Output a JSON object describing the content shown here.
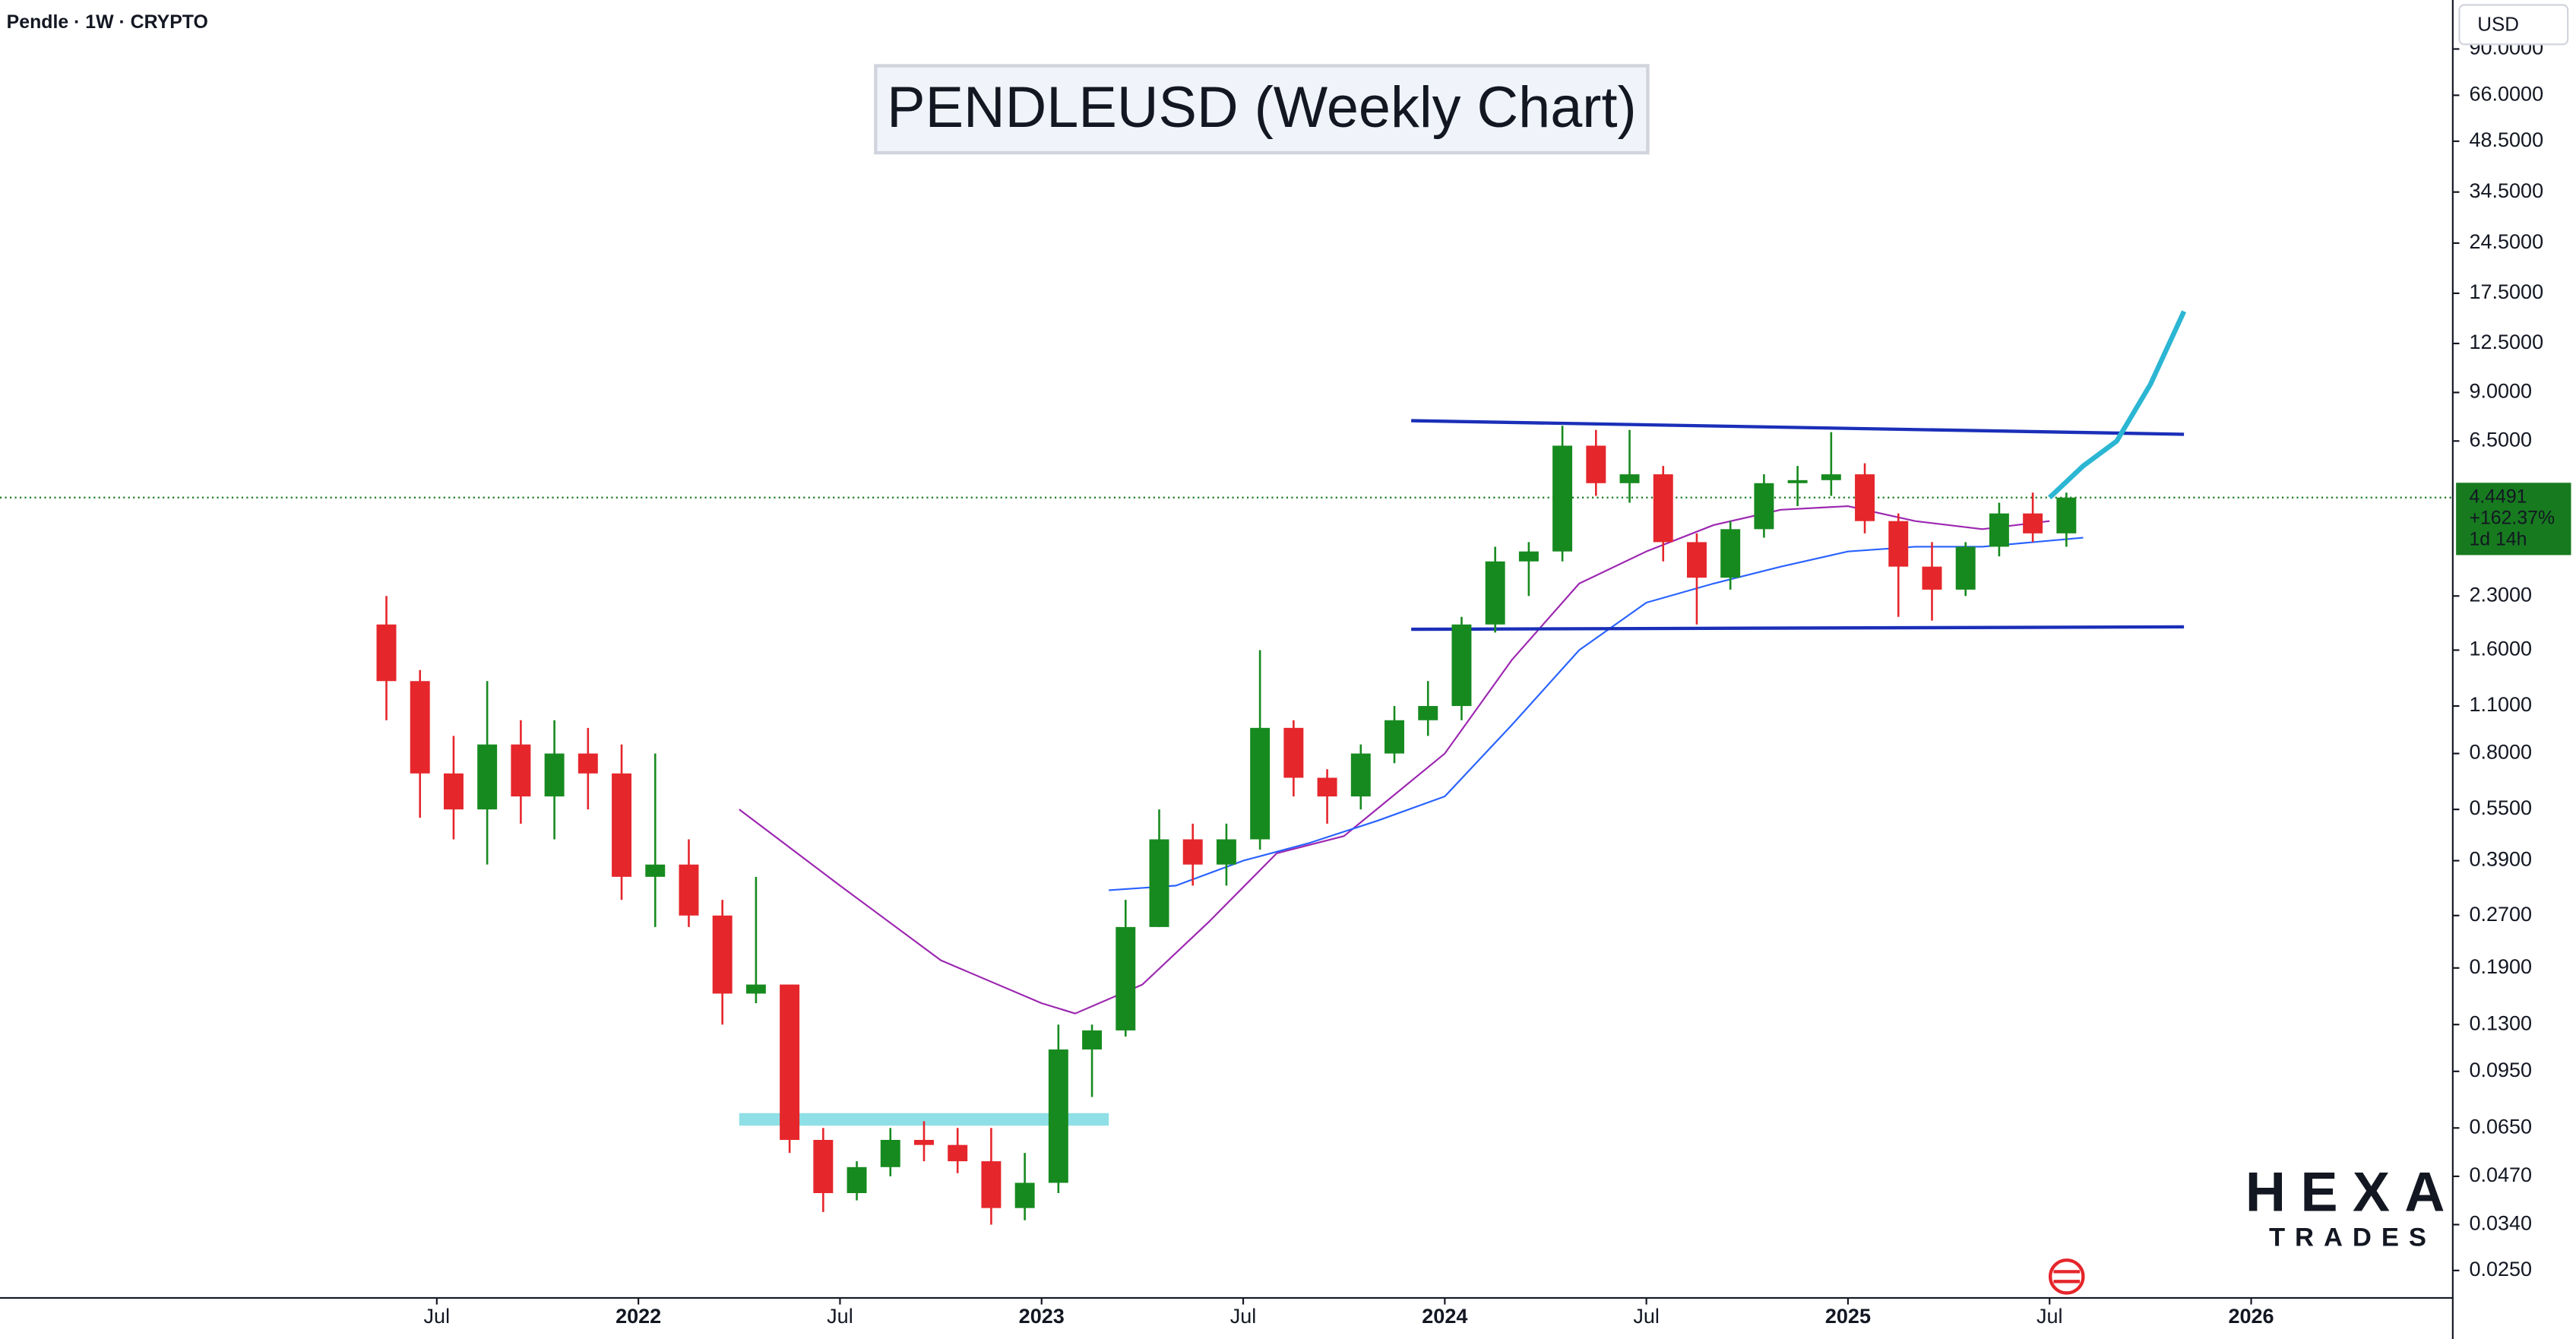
{
  "chart_data": {
    "type": "candlestick",
    "header": "Pendle · 1W · CRYPTO",
    "currency": "USD",
    "title": "PENDLEUSD (Weekly Chart)",
    "log_scale": true,
    "grid": false,
    "up_color": "#178a1f",
    "down_color": "#e5262b",
    "x": [
      "2021-05",
      "2021-06",
      "2021-07",
      "2021-08",
      "2021-09",
      "2021-10",
      "2021-11",
      "2021-12",
      "2022-01",
      "2022-02",
      "2022-03",
      "2022-04",
      "2022-05",
      "2022-06",
      "2022-07",
      "2022-08",
      "2022-09",
      "2022-10",
      "2022-11",
      "2022-12",
      "2023-01",
      "2023-02",
      "2023-03",
      "2023-04",
      "2023-05",
      "2023-06",
      "2023-07",
      "2023-08",
      "2023-09",
      "2023-10",
      "2023-11",
      "2023-12",
      "2024-01",
      "2024-02",
      "2024-03",
      "2024-04",
      "2024-05",
      "2024-06",
      "2024-07",
      "2024-08",
      "2024-09",
      "2024-10",
      "2024-11",
      "2024-12",
      "2025-01",
      "2025-02",
      "2025-03",
      "2025-04",
      "2025-05",
      "2025-06",
      "2025-07"
    ],
    "open": [
      1.9,
      1.3,
      0.7,
      0.55,
      0.85,
      0.6,
      0.8,
      0.7,
      0.35,
      0.38,
      0.27,
      0.16,
      0.17,
      0.06,
      0.042,
      0.05,
      0.06,
      0.058,
      0.052,
      0.038,
      0.045,
      0.11,
      0.125,
      0.25,
      0.45,
      0.38,
      0.45,
      0.95,
      0.68,
      0.6,
      0.8,
      1.0,
      1.1,
      1.9,
      2.9,
      3.1,
      6.3,
      4.9,
      5.2,
      3.3,
      2.6,
      3.6,
      4.9,
      5.0,
      5.2,
      3.8,
      2.8,
      2.4,
      3.2,
      4.0,
      3.5
    ],
    "high": [
      2.3,
      1.4,
      0.9,
      1.3,
      1.0,
      1.0,
      0.95,
      0.85,
      0.8,
      0.45,
      0.3,
      0.35,
      0.17,
      0.065,
      0.052,
      0.065,
      0.068,
      0.065,
      0.065,
      0.055,
      0.13,
      0.13,
      0.3,
      0.55,
      0.5,
      0.5,
      1.6,
      1.0,
      0.72,
      0.85,
      1.1,
      1.3,
      2.0,
      3.2,
      3.3,
      7.2,
      7.0,
      7.0,
      5.5,
      3.5,
      3.8,
      5.2,
      5.5,
      6.9,
      5.6,
      4.0,
      3.3,
      3.3,
      4.3,
      4.6,
      4.6
    ],
    "low": [
      1.0,
      0.52,
      0.45,
      0.38,
      0.5,
      0.45,
      0.55,
      0.3,
      0.25,
      0.25,
      0.13,
      0.15,
      0.055,
      0.037,
      0.04,
      0.047,
      0.052,
      0.048,
      0.034,
      0.035,
      0.042,
      0.08,
      0.12,
      0.25,
      0.33,
      0.33,
      0.42,
      0.6,
      0.5,
      0.55,
      0.75,
      0.9,
      1.0,
      1.8,
      2.3,
      2.9,
      4.5,
      4.3,
      2.9,
      1.9,
      2.4,
      3.4,
      4.2,
      4.5,
      3.5,
      2.0,
      1.95,
      2.3,
      3.0,
      3.3,
      3.2
    ],
    "close": [
      1.3,
      0.7,
      0.55,
      0.85,
      0.6,
      0.8,
      0.7,
      0.35,
      0.38,
      0.27,
      0.16,
      0.17,
      0.06,
      0.042,
      0.05,
      0.06,
      0.058,
      0.052,
      0.038,
      0.045,
      0.11,
      0.125,
      0.25,
      0.45,
      0.38,
      0.45,
      0.95,
      0.68,
      0.6,
      0.8,
      1.0,
      1.1,
      1.9,
      2.9,
      3.1,
      6.3,
      4.9,
      5.2,
      3.3,
      2.6,
      3.6,
      4.9,
      5.0,
      5.2,
      3.8,
      2.8,
      2.4,
      3.2,
      4.0,
      3.5,
      4.4491
    ],
    "moving_averages": [
      {
        "color": "#9c27b0",
        "x": [
          "2022-04",
          "2022-07",
          "2022-10",
          "2023-01",
          "2023-02",
          "2023-04",
          "2023-06",
          "2023-08",
          "2023-10",
          "2024-01",
          "2024-03",
          "2024-05",
          "2024-07",
          "2024-09",
          "2024-11",
          "2025-01",
          "2025-03",
          "2025-05",
          "2025-07"
        ],
        "values": [
          0.55,
          0.33,
          0.2,
          0.15,
          0.14,
          0.17,
          0.26,
          0.41,
          0.46,
          0.8,
          1.5,
          2.5,
          3.1,
          3.7,
          4.1,
          4.2,
          3.8,
          3.6,
          3.8
        ]
      },
      {
        "color": "#2962ff",
        "x": [
          "2023-03",
          "2023-05",
          "2023-07",
          "2023-09",
          "2023-11",
          "2024-01",
          "2024-03",
          "2024-05",
          "2024-07",
          "2024-09",
          "2024-11",
          "2025-01",
          "2025-03",
          "2025-05",
          "2025-08"
        ],
        "values": [
          0.32,
          0.33,
          0.39,
          0.44,
          0.51,
          0.6,
          0.97,
          1.6,
          2.2,
          2.5,
          2.8,
          3.1,
          3.2,
          3.2,
          3.4
        ]
      }
    ],
    "projection": {
      "color": "#2bb6d3",
      "x": [
        "2025-07",
        "2025-08",
        "2025-09",
        "2025-10",
        "2025-11"
      ],
      "values": [
        4.4491,
        5.5,
        6.5,
        9.5,
        15.5
      ]
    },
    "trendlines": [
      {
        "color": "#1a2fb8",
        "x": [
          "2023-12",
          "2025-11"
        ],
        "values": [
          7.45,
          6.8
        ]
      },
      {
        "color": "#1a2fb8",
        "x": [
          "2023-12",
          "2025-11"
        ],
        "values": [
          1.84,
          1.87
        ]
      }
    ],
    "zone": {
      "color": "#8fdfe6",
      "x": [
        "2022-04",
        "2023-03"
      ],
      "values": [
        0.066,
        0.0718
      ]
    },
    "price_label": {
      "value": 4.4491,
      "change": "+162.37%",
      "countdown": "1d 14h",
      "color": "#177a1f"
    },
    "watermark": "HEXA",
    "watermark_sub": "TRADES",
    "watermark_color": "#2fb57a",
    "xlim": [
      "2020-06",
      "2026-07"
    ],
    "xticks": [
      {
        "value": "2021-07",
        "label": "Jul"
      },
      {
        "value": "2022-01",
        "label": "2022"
      },
      {
        "value": "2022-07",
        "label": "Jul"
      },
      {
        "value": "2023-01",
        "label": "2023"
      },
      {
        "value": "2023-07",
        "label": "Jul"
      },
      {
        "value": "2024-01",
        "label": "2024"
      },
      {
        "value": "2024-07",
        "label": "Jul"
      },
      {
        "value": "2025-01",
        "label": "2025"
      },
      {
        "value": "2025-07",
        "label": "Jul"
      },
      {
        "value": "2026-01",
        "label": "2026"
      }
    ],
    "ylim": [
      0.0208,
      125
    ],
    "yticks": [
      {
        "value": 90,
        "label": "90.0000"
      },
      {
        "value": 66,
        "label": "66.0000"
      },
      {
        "value": 48.5,
        "label": "48.5000"
      },
      {
        "value": 34.5,
        "label": "34.5000"
      },
      {
        "value": 24.5,
        "label": "24.5000"
      },
      {
        "value": 17.5,
        "label": "17.5000"
      },
      {
        "value": 12.5,
        "label": "12.5000"
      },
      {
        "value": 9,
        "label": "9.0000"
      },
      {
        "value": 6.5,
        "label": "6.5000"
      },
      {
        "value": 2.3,
        "label": "2.3000"
      },
      {
        "value": 1.6,
        "label": "1.6000"
      },
      {
        "value": 1.1,
        "label": "1.1000"
      },
      {
        "value": 0.8,
        "label": "0.8000"
      },
      {
        "value": 0.55,
        "label": "0.5500"
      },
      {
        "value": 0.39,
        "label": "0.3900"
      },
      {
        "value": 0.27,
        "label": "0.2700"
      },
      {
        "value": 0.19,
        "label": "0.1900"
      },
      {
        "value": 0.13,
        "label": "0.1300"
      },
      {
        "value": 0.095,
        "label": "0.0950"
      },
      {
        "value": 0.065,
        "label": "0.0650"
      },
      {
        "value": 0.047,
        "label": "0.0470"
      },
      {
        "value": 0.034,
        "label": "0.0340"
      },
      {
        "value": 0.025,
        "label": "0.0250"
      }
    ]
  }
}
